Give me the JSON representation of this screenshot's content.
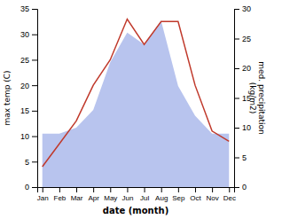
{
  "chart_data": {
    "type": "line",
    "categories": [
      "Jan",
      "Feb",
      "Mar",
      "Apr",
      "May",
      "Jun",
      "Jul",
      "Aug",
      "Sep",
      "Oct",
      "Nov",
      "Dec"
    ],
    "series": [
      {
        "type": "area",
        "axis": "y2",
        "color": "#b8c4ee",
        "values": [
          9,
          9,
          10,
          13,
          21,
          26,
          24,
          28,
          17,
          12,
          9,
          9
        ]
      },
      {
        "type": "line",
        "color": "#c0392b",
        "values": [
          4,
          8.5,
          13,
          20,
          25,
          33,
          28,
          32.5,
          32.5,
          20,
          11,
          9
        ]
      }
    ],
    "xlabel": "date (month)",
    "ylabel": "max temp (C)",
    "y2label": "med. precipitation\n(kg/m2)",
    "ylim": [
      0,
      35
    ],
    "yticks": [
      0,
      5,
      10,
      15,
      20,
      25,
      30,
      35
    ],
    "y2lim": [
      0,
      30
    ],
    "y2ticks": [
      0,
      5,
      10,
      15,
      20,
      25,
      30
    ]
  }
}
